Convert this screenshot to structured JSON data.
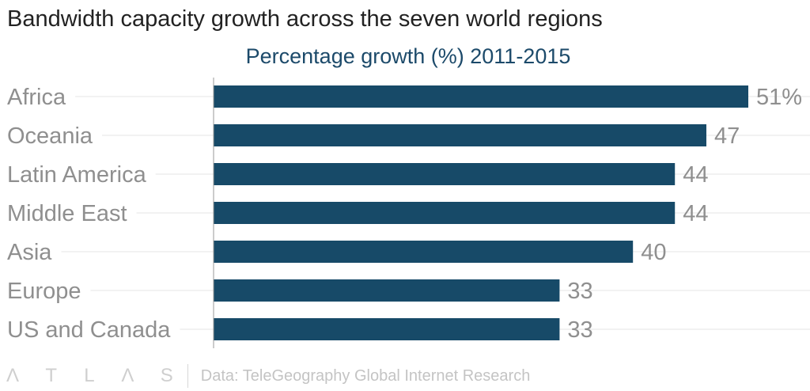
{
  "title": "Bandwidth capacity growth across the seven world regions",
  "logo": "ATLAS",
  "source": "Data: TeleGeography Global Internet Research",
  "colors": {
    "bar": "#174a68",
    "grid": "#eeeeee",
    "axis": "#999999"
  },
  "chart_data": {
    "type": "bar",
    "orientation": "horizontal",
    "title": "Percentage growth (%) 2011-2015",
    "categories": [
      "Africa",
      "Oceania",
      "Latin America",
      "Middle East",
      "Asia",
      "Europe",
      "US and Canada"
    ],
    "values": [
      51,
      47,
      44,
      44,
      40,
      33,
      33
    ],
    "value_labels": [
      "51%",
      "47",
      "44",
      "44",
      "40",
      "33",
      "33"
    ],
    "xlim": [
      0,
      51
    ],
    "grid": true
  }
}
